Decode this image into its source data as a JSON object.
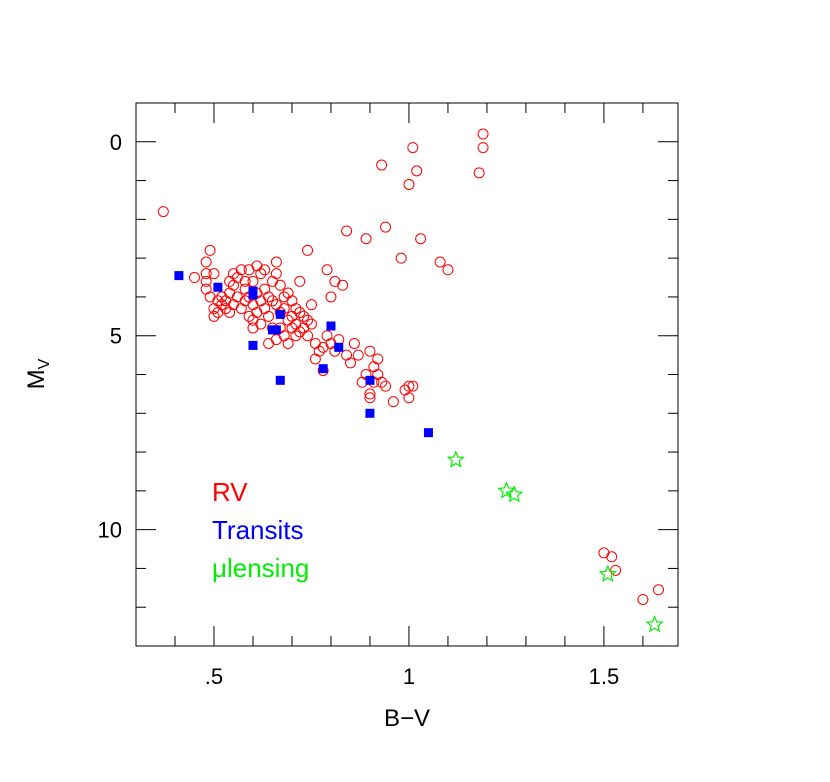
{
  "chart_data": {
    "type": "scatter",
    "xlabel": "B−V",
    "ylabel_main": "M",
    "ylabel_sub": "V",
    "xlim": [
      0.3,
      1.69
    ],
    "ylim": [
      13.0,
      -1.0
    ],
    "y_inverted": true,
    "grid": false,
    "x_ticks": [
      {
        "value": 0.5,
        "label": ".5"
      },
      {
        "value": 1.0,
        "label": "1"
      },
      {
        "value": 1.5,
        "label": "1.5"
      }
    ],
    "x_minor_step": 0.1,
    "y_ticks": [
      {
        "value": 0,
        "label": "0"
      },
      {
        "value": 5,
        "label": "5"
      },
      {
        "value": 10,
        "label": "10"
      }
    ],
    "y_minor_step": 1,
    "legend_position": "lower-left",
    "series": [
      {
        "name": "RV",
        "marker": "open-circle",
        "color": "#ff0000",
        "points": [
          [
            0.37,
            1.8
          ],
          [
            0.45,
            3.5
          ],
          [
            0.48,
            3.1
          ],
          [
            0.48,
            3.4
          ],
          [
            0.48,
            3.6
          ],
          [
            0.48,
            3.8
          ],
          [
            0.49,
            2.8
          ],
          [
            0.49,
            4.0
          ],
          [
            0.5,
            4.3
          ],
          [
            0.5,
            4.5
          ],
          [
            0.5,
            3.4
          ],
          [
            0.51,
            4.1
          ],
          [
            0.51,
            4.4
          ],
          [
            0.52,
            4.0
          ],
          [
            0.52,
            4.2
          ],
          [
            0.53,
            4.1
          ],
          [
            0.53,
            4.3
          ],
          [
            0.54,
            3.6
          ],
          [
            0.54,
            3.9
          ],
          [
            0.54,
            4.4
          ],
          [
            0.55,
            3.4
          ],
          [
            0.55,
            3.7
          ],
          [
            0.55,
            4.2
          ],
          [
            0.56,
            3.5
          ],
          [
            0.56,
            4.0
          ],
          [
            0.57,
            4.3
          ],
          [
            0.57,
            3.3
          ],
          [
            0.58,
            3.8
          ],
          [
            0.58,
            4.1
          ],
          [
            0.58,
            3.6
          ],
          [
            0.59,
            3.3
          ],
          [
            0.59,
            4.0
          ],
          [
            0.59,
            4.5
          ],
          [
            0.6,
            3.6
          ],
          [
            0.6,
            4.2
          ],
          [
            0.6,
            4.6
          ],
          [
            0.6,
            4.8
          ],
          [
            0.61,
            3.2
          ],
          [
            0.61,
            3.9
          ],
          [
            0.61,
            4.4
          ],
          [
            0.62,
            3.4
          ],
          [
            0.62,
            4.1
          ],
          [
            0.62,
            4.7
          ],
          [
            0.63,
            3.8
          ],
          [
            0.63,
            4.3
          ],
          [
            0.63,
            3.3
          ],
          [
            0.64,
            4.0
          ],
          [
            0.64,
            4.5
          ],
          [
            0.64,
            5.2
          ],
          [
            0.65,
            3.6
          ],
          [
            0.65,
            4.1
          ],
          [
            0.65,
            4.8
          ],
          [
            0.66,
            3.1
          ],
          [
            0.66,
            3.4
          ],
          [
            0.66,
            4.2
          ],
          [
            0.66,
            5.1
          ],
          [
            0.67,
            3.7
          ],
          [
            0.67,
            4.4
          ],
          [
            0.67,
            4.8
          ],
          [
            0.68,
            4.0
          ],
          [
            0.68,
            4.3
          ],
          [
            0.68,
            5.0
          ],
          [
            0.69,
            3.9
          ],
          [
            0.69,
            4.6
          ],
          [
            0.69,
            5.2
          ],
          [
            0.7,
            4.1
          ],
          [
            0.7,
            4.5
          ],
          [
            0.7,
            4.8
          ],
          [
            0.71,
            4.3
          ],
          [
            0.71,
            4.7
          ],
          [
            0.71,
            5.0
          ],
          [
            0.72,
            3.6
          ],
          [
            0.72,
            4.4
          ],
          [
            0.72,
            4.9
          ],
          [
            0.73,
            4.5
          ],
          [
            0.73,
            4.8
          ],
          [
            0.74,
            2.8
          ],
          [
            0.74,
            4.6
          ],
          [
            0.74,
            5.0
          ],
          [
            0.75,
            4.2
          ],
          [
            0.75,
            4.7
          ],
          [
            0.76,
            5.2
          ],
          [
            0.76,
            5.6
          ],
          [
            0.77,
            5.4
          ],
          [
            0.78,
            5.3
          ],
          [
            0.78,
            5.9
          ],
          [
            0.79,
            3.3
          ],
          [
            0.79,
            5.0
          ],
          [
            0.8,
            4.0
          ],
          [
            0.8,
            5.2
          ],
          [
            0.81,
            3.6
          ],
          [
            0.81,
            5.4
          ],
          [
            0.82,
            5.1
          ],
          [
            0.83,
            3.7
          ],
          [
            0.84,
            5.5
          ],
          [
            0.84,
            2.3
          ],
          [
            0.85,
            5.7
          ],
          [
            0.86,
            5.2
          ],
          [
            0.87,
            5.5
          ],
          [
            0.88,
            6.2
          ],
          [
            0.89,
            2.5
          ],
          [
            0.89,
            6.0
          ],
          [
            0.9,
            5.4
          ],
          [
            0.9,
            6.5
          ],
          [
            0.9,
            6.6
          ],
          [
            0.91,
            5.8
          ],
          [
            0.91,
            6.2
          ],
          [
            0.92,
            5.6
          ],
          [
            0.92,
            6.0
          ],
          [
            0.93,
            0.6
          ],
          [
            0.93,
            6.2
          ],
          [
            0.94,
            2.2
          ],
          [
            0.94,
            6.3
          ],
          [
            0.96,
            6.7
          ],
          [
            0.98,
            3.0
          ],
          [
            0.99,
            6.4
          ],
          [
            1.0,
            1.1
          ],
          [
            1.0,
            6.3
          ],
          [
            1.0,
            6.6
          ],
          [
            1.01,
            0.15
          ],
          [
            1.01,
            6.3
          ],
          [
            1.02,
            0.75
          ],
          [
            1.03,
            2.5
          ],
          [
            1.08,
            3.1
          ],
          [
            1.1,
            3.3
          ],
          [
            1.18,
            0.8
          ],
          [
            1.19,
            0.15
          ],
          [
            1.19,
            -0.2
          ],
          [
            1.5,
            10.6
          ],
          [
            1.52,
            10.7
          ],
          [
            1.53,
            11.05
          ],
          [
            1.6,
            11.8
          ],
          [
            1.64,
            11.55
          ]
        ]
      },
      {
        "name": "Transits",
        "marker": "filled-square",
        "color": "#0000ff",
        "points": [
          [
            0.41,
            3.45
          ],
          [
            0.51,
            3.75
          ],
          [
            0.6,
            3.95
          ],
          [
            0.6,
            3.85
          ],
          [
            0.6,
            5.25
          ],
          [
            0.65,
            4.85
          ],
          [
            0.66,
            4.85
          ],
          [
            0.67,
            4.45
          ],
          [
            0.67,
            6.15
          ],
          [
            0.78,
            5.85
          ],
          [
            0.8,
            4.75
          ],
          [
            0.82,
            5.3
          ],
          [
            0.9,
            6.15
          ],
          [
            0.9,
            7.0
          ],
          [
            1.05,
            7.5
          ]
        ]
      },
      {
        "name": "μlensing",
        "marker": "open-star",
        "color": "#00ee00",
        "points": [
          [
            1.12,
            8.2
          ],
          [
            1.25,
            9.0
          ],
          [
            1.27,
            9.1
          ],
          [
            1.51,
            11.15
          ],
          [
            1.63,
            12.45
          ]
        ]
      }
    ]
  }
}
